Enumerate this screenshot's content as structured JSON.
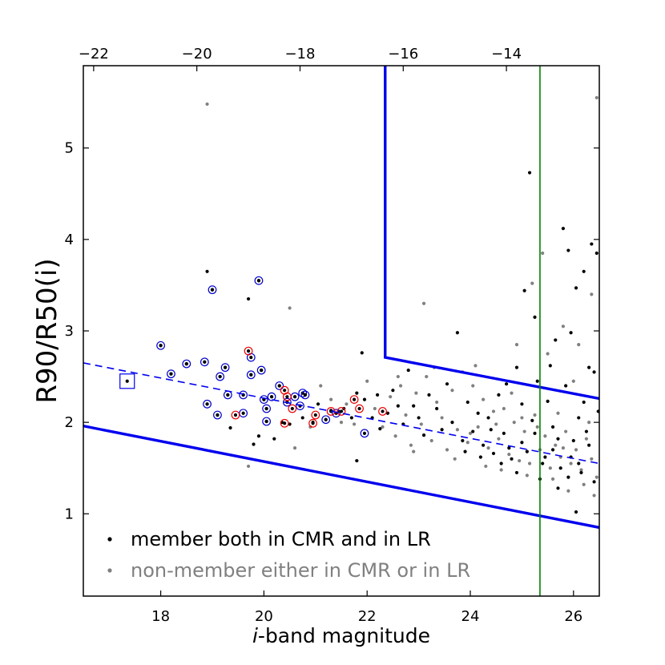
{
  "chart_data": {
    "type": "scatter",
    "xlabel_italic": "i",
    "xlabel_rest": "-band magnitude",
    "ylabel": "R90/R50(i)",
    "xlim": [
      16.5,
      26.5
    ],
    "ylim": [
      0.1,
      5.9
    ],
    "x_ticks": [
      18,
      20,
      22,
      24,
      26
    ],
    "y_ticks": [
      1,
      2,
      3,
      4,
      5
    ],
    "top_axis_ticks": [
      {
        "at": 16.7,
        "label": "−22"
      },
      {
        "at": 18.7,
        "label": "−20"
      },
      {
        "at": 20.7,
        "label": "−18"
      },
      {
        "at": 22.7,
        "label": "−16"
      },
      {
        "at": 24.7,
        "label": "−14"
      }
    ],
    "colors": {
      "member": "#000000",
      "nonmember": "#808080",
      "selection_lines": "#0000ee",
      "vertical_limit": "#008000",
      "blue_circle": "#0000cc",
      "red_circle": "#ee0000"
    },
    "legend": [
      {
        "label": "member both in CMR and in LR",
        "color": "#000000"
      },
      {
        "label": "non-member either in CMR or in LR",
        "color": "#808080"
      }
    ],
    "selection_lines": [
      {
        "name": "lower boundary",
        "style": "solid",
        "points": [
          [
            16.5,
            1.96
          ],
          [
            26.5,
            0.85
          ]
        ]
      },
      {
        "name": "mean relation",
        "style": "dashed",
        "points": [
          [
            16.5,
            2.65
          ],
          [
            26.5,
            1.55
          ]
        ]
      },
      {
        "name": "upper boundary",
        "style": "solid",
        "points": [
          [
            22.35,
            5.9
          ],
          [
            22.35,
            2.71
          ],
          [
            26.5,
            2.26
          ]
        ]
      }
    ],
    "vertical_line": {
      "x": 25.35
    },
    "square_marker": {
      "x": 17.35,
      "y": 2.45
    },
    "member_points": [
      [
        18.9,
        3.65
      ],
      [
        19.0,
        3.45
      ],
      [
        19.9,
        3.55
      ],
      [
        19.7,
        3.35
      ],
      [
        18.0,
        2.84
      ],
      [
        18.85,
        2.66
      ],
      [
        18.5,
        2.64
      ],
      [
        19.25,
        2.6
      ],
      [
        18.2,
        2.53
      ],
      [
        19.15,
        2.5
      ],
      [
        19.75,
        2.52
      ],
      [
        19.95,
        2.57
      ],
      [
        19.3,
        2.3
      ],
      [
        19.6,
        2.3
      ],
      [
        18.9,
        2.2
      ],
      [
        19.1,
        2.08
      ],
      [
        19.35,
        1.94
      ],
      [
        20.0,
        2.25
      ],
      [
        20.15,
        2.28
      ],
      [
        20.3,
        2.4
      ],
      [
        20.45,
        2.22
      ],
      [
        20.6,
        2.28
      ],
      [
        20.7,
        2.18
      ],
      [
        20.8,
        2.3
      ],
      [
        20.05,
        2.15
      ],
      [
        20.05,
        2.01
      ],
      [
        19.9,
        1.85
      ],
      [
        19.8,
        1.76
      ],
      [
        20.2,
        1.82
      ],
      [
        20.35,
        2.0
      ],
      [
        20.5,
        1.98
      ],
      [
        20.75,
        2.05
      ],
      [
        20.95,
        2.0
      ],
      [
        21.05,
        2.2
      ],
      [
        21.2,
        2.03
      ],
      [
        21.3,
        2.13
      ],
      [
        21.45,
        2.12
      ],
      [
        21.55,
        2.15
      ],
      [
        21.7,
        2.05
      ],
      [
        21.8,
        2.32
      ],
      [
        21.9,
        2.76
      ],
      [
        21.95,
        2.25
      ],
      [
        22.1,
        2.05
      ],
      [
        22.2,
        2.3
      ],
      [
        22.25,
        1.93
      ],
      [
        22.4,
        2.1
      ],
      [
        22.5,
        2.35
      ],
      [
        22.6,
        2.18
      ],
      [
        21.8,
        1.58
      ],
      [
        22.7,
        1.98
      ],
      [
        22.8,
        2.57
      ],
      [
        22.9,
        2.18
      ],
      [
        23.0,
        2.05
      ],
      [
        23.1,
        1.86
      ],
      [
        23.2,
        2.3
      ],
      [
        23.35,
        2.15
      ],
      [
        23.45,
        1.92
      ],
      [
        23.55,
        2.42
      ],
      [
        23.65,
        2.0
      ],
      [
        23.75,
        2.98
      ],
      [
        23.85,
        1.8
      ],
      [
        23.95,
        2.22
      ],
      [
        24.05,
        1.9
      ],
      [
        24.15,
        2.1
      ],
      [
        24.25,
        1.75
      ],
      [
        24.35,
        2.05
      ],
      [
        24.45,
        1.66
      ],
      [
        24.55,
        2.3
      ],
      [
        24.65,
        1.88
      ],
      [
        24.7,
        2.42
      ],
      [
        24.8,
        1.6
      ],
      [
        24.9,
        2.6
      ],
      [
        25.0,
        1.78
      ],
      [
        25.05,
        3.44
      ],
      [
        25.15,
        4.73
      ],
      [
        25.2,
        2.02
      ],
      [
        25.25,
        3.15
      ],
      [
        25.3,
        2.45
      ],
      [
        25.4,
        1.55
      ],
      [
        25.5,
        2.23
      ],
      [
        25.55,
        2.62
      ],
      [
        25.6,
        1.7
      ],
      [
        25.65,
        2.9
      ],
      [
        25.7,
        1.82
      ],
      [
        25.8,
        4.12
      ],
      [
        25.85,
        2.4
      ],
      [
        25.9,
        3.88
      ],
      [
        25.95,
        1.62
      ],
      [
        26.05,
        3.47
      ],
      [
        26.1,
        2.05
      ],
      [
        26.15,
        1.45
      ],
      [
        26.2,
        3.65
      ],
      [
        26.25,
        1.9
      ],
      [
        26.3,
        2.6
      ],
      [
        26.35,
        3.95
      ],
      [
        26.4,
        1.35
      ],
      [
        26.45,
        3.85
      ],
      [
        26.48,
        2.12
      ],
      [
        26.05,
        1.02
      ],
      [
        25.95,
        2.98
      ],
      [
        24.9,
        1.45
      ],
      [
        24.6,
        1.55
      ],
      [
        25.1,
        1.68
      ],
      [
        25.45,
        1.62
      ],
      [
        25.75,
        1.5
      ],
      [
        26.0,
        1.8
      ],
      [
        26.3,
        1.75
      ],
      [
        25.25,
        1.88
      ],
      [
        24.2,
        1.62
      ],
      [
        24.75,
        1.72
      ],
      [
        25.6,
        1.95
      ],
      [
        26.2,
        2.22
      ],
      [
        25.9,
        1.4
      ],
      [
        24.4,
        1.92
      ],
      [
        23.9,
        1.68
      ],
      [
        25.0,
        2.2
      ],
      [
        26.4,
        2.55
      ],
      [
        25.35,
        1.38
      ],
      [
        25.7,
        1.28
      ],
      [
        26.1,
        1.55
      ]
    ],
    "nonmember_points": [
      [
        18.9,
        5.48
      ],
      [
        26.45,
        5.55
      ],
      [
        20.5,
        3.25
      ],
      [
        23.1,
        3.3
      ],
      [
        19.7,
        1.52
      ],
      [
        20.6,
        1.72
      ],
      [
        21.1,
        2.4
      ],
      [
        21.3,
        2.25
      ],
      [
        21.6,
        2.2
      ],
      [
        21.75,
        1.98
      ],
      [
        22.0,
        2.45
      ],
      [
        22.15,
        2.15
      ],
      [
        22.3,
        1.95
      ],
      [
        22.45,
        2.28
      ],
      [
        22.55,
        1.85
      ],
      [
        22.65,
        2.4
      ],
      [
        22.75,
        2.08
      ],
      [
        22.85,
        1.75
      ],
      [
        22.95,
        2.32
      ],
      [
        23.05,
        1.98
      ],
      [
        23.15,
        2.5
      ],
      [
        23.25,
        1.8
      ],
      [
        23.35,
        2.22
      ],
      [
        23.45,
        2.05
      ],
      [
        23.55,
        1.7
      ],
      [
        23.65,
        2.35
      ],
      [
        23.75,
        1.92
      ],
      [
        23.85,
        2.55
      ],
      [
        23.95,
        1.78
      ],
      [
        24.05,
        2.4
      ],
      [
        24.15,
        1.95
      ],
      [
        24.25,
        2.25
      ],
      [
        24.35,
        1.72
      ],
      [
        24.45,
        2.12
      ],
      [
        24.55,
        1.82
      ],
      [
        24.65,
        2.15
      ],
      [
        24.75,
        1.65
      ],
      [
        24.85,
        2.0
      ],
      [
        24.95,
        1.58
      ],
      [
        25.05,
        1.9
      ],
      [
        25.15,
        1.55
      ],
      [
        25.25,
        2.08
      ],
      [
        25.35,
        1.7
      ],
      [
        25.45,
        1.85
      ],
      [
        25.55,
        1.5
      ],
      [
        25.65,
        1.75
      ],
      [
        25.75,
        1.62
      ],
      [
        25.85,
        1.9
      ],
      [
        25.95,
        1.55
      ],
      [
        26.05,
        1.7
      ],
      [
        26.15,
        1.48
      ],
      [
        26.25,
        1.82
      ],
      [
        26.35,
        1.6
      ],
      [
        26.45,
        1.4
      ],
      [
        25.2,
        3.52
      ],
      [
        25.8,
        3.05
      ],
      [
        26.35,
        3.4
      ],
      [
        25.5,
        2.75
      ],
      [
        26.0,
        2.45
      ],
      [
        24.1,
        2.62
      ],
      [
        24.9,
        2.85
      ],
      [
        25.6,
        1.38
      ],
      [
        26.2,
        1.32
      ],
      [
        25.9,
        1.25
      ],
      [
        26.4,
        1.2
      ],
      [
        24.6,
        1.48
      ],
      [
        24.3,
        1.52
      ],
      [
        25.1,
        1.42
      ],
      [
        23.7,
        1.6
      ],
      [
        22.9,
        1.68
      ],
      [
        26.1,
        2.85
      ],
      [
        25.4,
        3.85
      ],
      [
        24.8,
        2.32
      ],
      [
        25.0,
        2.05
      ],
      [
        25.3,
        1.95
      ],
      [
        25.7,
        2.1
      ],
      [
        26.3,
        2.0
      ],
      [
        23.3,
        2.6
      ],
      [
        22.6,
        2.5
      ],
      [
        21.5,
        2.0
      ],
      [
        20.9,
        1.95
      ],
      [
        24.0,
        1.88
      ],
      [
        24.5,
        1.98
      ],
      [
        25.8,
        1.72
      ]
    ],
    "blue_circled_members": [
      [
        18.0,
        2.84
      ],
      [
        18.2,
        2.53
      ],
      [
        18.5,
        2.64
      ],
      [
        18.85,
        2.66
      ],
      [
        19.0,
        3.45
      ],
      [
        19.9,
        3.55
      ],
      [
        19.25,
        2.6
      ],
      [
        19.15,
        2.5
      ],
      [
        18.9,
        2.2
      ],
      [
        19.1,
        2.08
      ],
      [
        19.3,
        2.3
      ],
      [
        19.6,
        2.3
      ],
      [
        19.75,
        2.52
      ],
      [
        19.75,
        2.71
      ],
      [
        19.95,
        2.57
      ],
      [
        20.0,
        2.25
      ],
      [
        20.05,
        2.15
      ],
      [
        20.05,
        2.01
      ],
      [
        20.15,
        2.28
      ],
      [
        20.3,
        2.4
      ],
      [
        20.45,
        2.22
      ],
      [
        20.6,
        2.28
      ],
      [
        20.7,
        2.18
      ],
      [
        20.75,
        2.32
      ],
      [
        20.8,
        2.3
      ],
      [
        21.2,
        2.03
      ],
      [
        21.4,
        2.1
      ],
      [
        21.95,
        1.88
      ],
      [
        19.6,
        2.1
      ]
    ],
    "red_circled_members": [
      [
        19.7,
        2.78
      ],
      [
        20.4,
        2.35
      ],
      [
        20.45,
        2.28
      ],
      [
        20.55,
        2.15
      ],
      [
        20.4,
        1.99
      ],
      [
        19.45,
        2.08
      ],
      [
        20.95,
        1.99
      ],
      [
        21.0,
        2.08
      ],
      [
        21.3,
        2.12
      ],
      [
        21.5,
        2.12
      ],
      [
        21.75,
        2.25
      ],
      [
        21.85,
        2.15
      ],
      [
        22.3,
        2.12
      ]
    ]
  }
}
